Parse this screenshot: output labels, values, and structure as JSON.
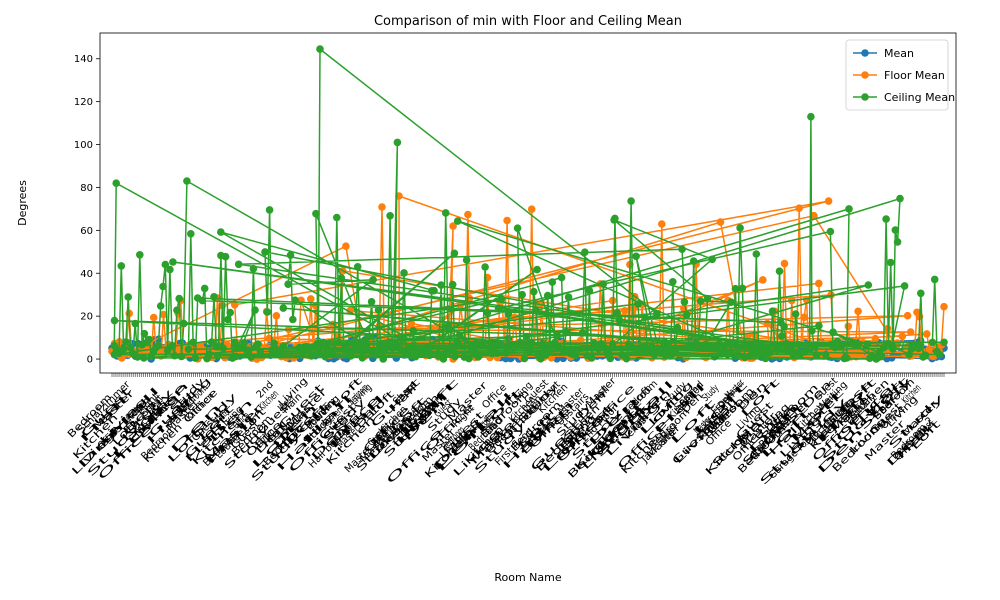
{
  "chart_data": {
    "type": "line",
    "title": "Comparison of min with Floor and Ceiling Mean",
    "xlabel": "Room Name",
    "ylabel": "Degrees",
    "ylim": [
      -6.5,
      152
    ],
    "yticks": [
      0,
      20,
      40,
      60,
      80,
      100,
      120,
      140
    ],
    "legend": "top-right",
    "grid": false,
    "series": [
      {
        "name": "Mean",
        "color": "#1f77b4"
      },
      {
        "name": "Floor Mean",
        "color": "#ff7f0e"
      },
      {
        "name": "Ceiling Mean",
        "color": "#2ca02c"
      }
    ],
    "visible_x_labels": [
      "Schlafzimmer",
      "Eight",
      "Hall",
      "Guest",
      "Lounge",
      "2nd",
      "Main",
      "Lower",
      "Hall bedroom",
      "Master Bed",
      "Share",
      "Front",
      "Right",
      "Dad",
      "First floor",
      "Basement",
      "Upstairs",
      "2nd Floor",
      "Texas",
      "Jack and",
      "Second",
      "Front",
      "Living",
      "Primary",
      "Garage room",
      "Waiting",
      "Primary",
      "Office",
      "Bedroom 2"
    ],
    "highlight_points": [
      {
        "series": "Ceiling Mean",
        "x": 0.25,
        "y": 144.5
      },
      {
        "series": "Ceiling Mean",
        "x": 0.343,
        "y": 101
      },
      {
        "series": "Ceiling Mean",
        "x": 0.84,
        "y": 113
      },
      {
        "series": "Ceiling Mean",
        "x": 0.09,
        "y": 83
      },
      {
        "series": "Ceiling Mean",
        "x": 0.005,
        "y": 82
      },
      {
        "series": "Floor Mean",
        "x": 0.345,
        "y": 76
      },
      {
        "series": "Floor Mean",
        "x": 0.41,
        "y": 62
      }
    ]
  }
}
